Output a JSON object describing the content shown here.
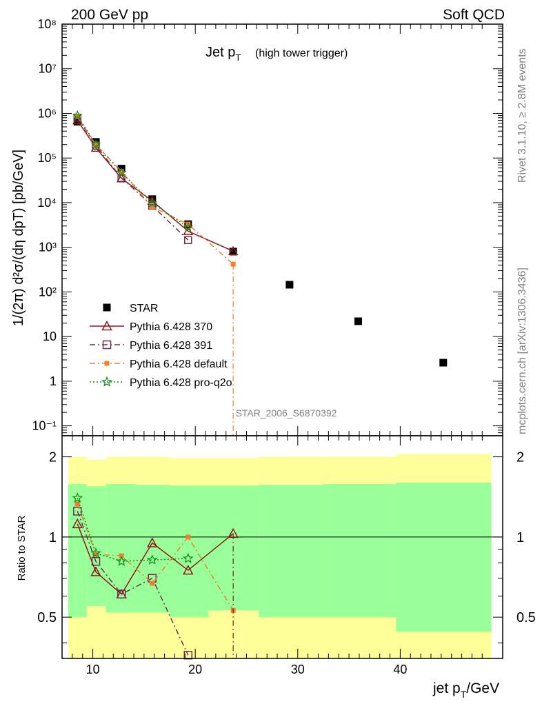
{
  "header": {
    "left": "200 GeV pp",
    "right": "Soft QCD"
  },
  "side": {
    "rivet": "Rivet 3.1.10, ≥ 2.8M events",
    "mcplots": "mcplots.cern.ch [arXiv:1306.3436]"
  },
  "plot_title": {
    "main": "Jet p",
    "sub": "T",
    "note": "(high tower trigger)"
  },
  "analysis_id": "STAR_2006_S6870392",
  "y_axis_top": {
    "label": "1/(2π) d²σ/(dη dpT) [pb/GeV]"
  },
  "y_axis_bottom": {
    "label": "Ratio to STAR"
  },
  "x_axis": {
    "label": "jet p",
    "sub": "T",
    "unit": "/GeV"
  },
  "legend": [
    {
      "name": "STAR",
      "color": "#000000",
      "marker": "filled-square",
      "line": "none"
    },
    {
      "name": "Pythia 6.428 370",
      "color": "#8b1a1a",
      "marker": "open-triangle",
      "line": "solid"
    },
    {
      "name": "Pythia 6.428 391",
      "color": "#6b2f4f",
      "marker": "open-square",
      "line": "dash-dot"
    },
    {
      "name": "Pythia 6.428 default",
      "color": "#f08030",
      "marker": "filled-square",
      "line": "dash-dot"
    },
    {
      "name": "Pythia 6.428 pro-q2o",
      "color": "#1a8c1a",
      "marker": "star",
      "line": "dotted"
    }
  ],
  "chart_data": [
    {
      "type": "line",
      "panel": "main",
      "y_scale": "log",
      "xlim": [
        7,
        50
      ],
      "ylim": [
        0.06,
        100000000
      ],
      "y_ticks": [
        "10⁻¹",
        "1",
        "10",
        "10²",
        "10³",
        "10⁴",
        "10⁵",
        "10⁶",
        "10⁷",
        "10⁸"
      ],
      "x_ticks": [
        "10",
        "20",
        "30",
        "40"
      ],
      "series": [
        {
          "name": "STAR",
          "x": [
            8.5,
            10.3,
            12.8,
            15.8,
            19.3,
            23.7,
            29.2,
            35.9,
            44.2
          ],
          "y": [
            650000,
            230000,
            58000,
            12000,
            3300,
            800,
            145,
            22,
            2.6
          ]
        },
        {
          "name": "Pythia 6.428 370",
          "x": [
            8.5,
            10.3,
            12.8,
            15.8,
            19.3,
            23.7
          ],
          "y": [
            700000,
            170000,
            35000,
            11000,
            2300,
            820
          ]
        },
        {
          "name": "Pythia 6.428 391",
          "x": [
            8.5,
            10.3,
            12.8,
            15.8,
            19.3
          ],
          "y": [
            800000,
            190000,
            36000,
            8500,
            1450
          ]
        },
        {
          "name": "Pythia 6.428 default",
          "x": [
            8.5,
            10.3,
            12.8,
            15.8,
            19.3,
            23.7
          ],
          "y": [
            850000,
            200000,
            50000,
            8000,
            3300,
            420
          ]
        },
        {
          "name": "Pythia 6.428 pro-q2o",
          "x": [
            8.5,
            10.3,
            12.8,
            15.8,
            19.3
          ],
          "y": [
            900000,
            200000,
            47000,
            9800,
            2800
          ]
        }
      ]
    },
    {
      "type": "line",
      "panel": "ratio",
      "y_scale": "log",
      "xlim": [
        7,
        50
      ],
      "ylim": [
        0.35,
        2.4
      ],
      "y_ticks": [
        "0.5",
        "1",
        "2"
      ],
      "x_ticks": [
        "10",
        "20",
        "30",
        "40"
      ],
      "bands": {
        "edges": [
          7.6,
          9.4,
          11.3,
          14.2,
          17.5,
          21.3,
          26.2,
          32.4,
          39.6,
          48.9
        ],
        "outer_low": [
          0.25,
          0.55,
          0.52,
          0.52,
          0.5,
          0.53,
          0.5,
          0.5,
          0.44
        ],
        "outer_high": [
          2.0,
          1.95,
          2.0,
          2.0,
          1.98,
          1.98,
          2.0,
          2.0,
          2.05
        ],
        "inner_low": [
          0.5,
          0.55,
          0.52,
          0.52,
          0.5,
          0.53,
          0.5,
          0.5,
          0.44
        ],
        "inner_high": [
          1.58,
          1.55,
          1.58,
          1.57,
          1.56,
          1.56,
          1.57,
          1.58,
          1.6
        ]
      },
      "series": [
        {
          "name": "Pythia 6.428 370",
          "x": [
            8.5,
            10.3,
            12.8,
            15.8,
            19.3,
            23.7
          ],
          "y": [
            1.12,
            0.74,
            0.61,
            0.95,
            0.75,
            1.03
          ]
        },
        {
          "name": "Pythia 6.428 391",
          "x": [
            8.5,
            10.3,
            12.8,
            15.8,
            19.3
          ],
          "y": [
            1.25,
            0.81,
            0.61,
            0.7,
            0.36
          ]
        },
        {
          "name": "Pythia 6.428 default",
          "x": [
            8.5,
            10.3,
            12.8,
            15.8,
            19.3,
            23.7
          ],
          "y": [
            1.33,
            0.86,
            0.85,
            0.67,
            1.0,
            0.53
          ]
        },
        {
          "name": "Pythia 6.428 pro-q2o",
          "x": [
            8.5,
            10.3,
            12.8,
            15.8,
            19.3
          ],
          "y": [
            1.4,
            0.87,
            0.81,
            0.82,
            0.83
          ]
        }
      ]
    }
  ]
}
